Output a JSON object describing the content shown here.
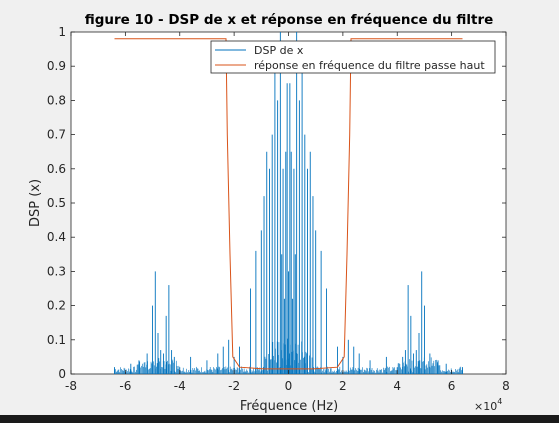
{
  "window": {
    "bottom_bar_color": "#1a1a1a",
    "background": "#f0f0f0"
  },
  "chart_data": {
    "type": "line",
    "title": "figure 10 - DSP de x et réponse en fréquence du filtre",
    "xlabel": "Fréquence (Hz)",
    "ylabel": "DSP (x)",
    "x_exponent_label": "×10",
    "x_exponent_power": "4",
    "xlim": [
      -80000,
      80000
    ],
    "ylim": [
      0,
      1
    ],
    "x_ticks": [
      -80000,
      -60000,
      -40000,
      -20000,
      0,
      20000,
      40000,
      60000,
      80000
    ],
    "x_tick_labels": [
      "-8",
      "-6",
      "-4",
      "-2",
      "0",
      "2",
      "4",
      "6",
      "8"
    ],
    "y_ticks": [
      0,
      0.1,
      0.2,
      0.3,
      0.4,
      0.5,
      0.6,
      0.7,
      0.8,
      0.9,
      1
    ],
    "y_tick_labels": [
      "0",
      "0.1",
      "0.2",
      "0.3",
      "0.4",
      "0.5",
      "0.6",
      "0.7",
      "0.8",
      "0.9",
      "1"
    ],
    "grid": false,
    "legend_placement": "top-right",
    "series": [
      {
        "name": "DSP de x",
        "color": "#0072bd",
        "style": "stem-spectrum",
        "x": [
          -64000,
          -58000,
          -55000,
          -52000,
          -50000,
          -49000,
          -48000,
          -47000,
          -46000,
          -45000,
          -44000,
          -43000,
          -42000,
          -40000,
          -36000,
          -30000,
          -26000,
          -24000,
          -22000,
          -20000,
          -18000,
          -14000,
          -12000,
          -10000,
          -9000,
          -8000,
          -7000,
          -6000,
          -5000,
          -4000,
          -3000,
          -2500,
          -2000,
          -1500,
          -1000,
          -500,
          0,
          500,
          1000,
          1500,
          2000,
          2500,
          3000,
          4000,
          5000,
          6000,
          7000,
          8000,
          9000,
          10000,
          12000,
          14000,
          18000,
          20000,
          22000,
          24000,
          26000,
          30000,
          36000,
          40000,
          42000,
          43000,
          44000,
          45000,
          46000,
          47000,
          48000,
          49000,
          50000,
          52000,
          55000,
          58000,
          64000
        ],
        "y": [
          0.02,
          0.03,
          0.04,
          0.06,
          0.2,
          0.3,
          0.12,
          0.07,
          0.06,
          0.17,
          0.26,
          0.07,
          0.05,
          0.02,
          0.05,
          0.04,
          0.06,
          0.08,
          0.1,
          0.05,
          0.08,
          0.25,
          0.36,
          0.42,
          0.52,
          0.65,
          0.6,
          0.7,
          0.95,
          0.8,
          1.0,
          0.35,
          0.6,
          0.22,
          0.65,
          0.85,
          0.3,
          0.85,
          0.65,
          0.22,
          0.6,
          0.35,
          1.0,
          0.8,
          0.95,
          0.7,
          0.6,
          0.65,
          0.52,
          0.42,
          0.36,
          0.25,
          0.08,
          0.05,
          0.1,
          0.08,
          0.06,
          0.04,
          0.05,
          0.02,
          0.05,
          0.07,
          0.26,
          0.17,
          0.06,
          0.07,
          0.12,
          0.3,
          0.2,
          0.06,
          0.04,
          0.03,
          0.02
        ]
      },
      {
        "name": "réponse en fréquence du filtre passe haut",
        "color": "#d95319",
        "style": "line",
        "x": [
          -64000,
          -34000,
          -23000,
          -22500,
          -21500,
          -20500,
          -18000,
          -9000,
          -1500,
          1500,
          9000,
          18000,
          20500,
          21500,
          22500,
          23000,
          34000,
          64000
        ],
        "y": [
          0.98,
          0.98,
          0.98,
          0.7,
          0.35,
          0.05,
          0.02,
          0.015,
          0.015,
          0.015,
          0.015,
          0.02,
          0.05,
          0.35,
          0.7,
          0.98,
          0.98,
          0.98
        ]
      }
    ]
  }
}
